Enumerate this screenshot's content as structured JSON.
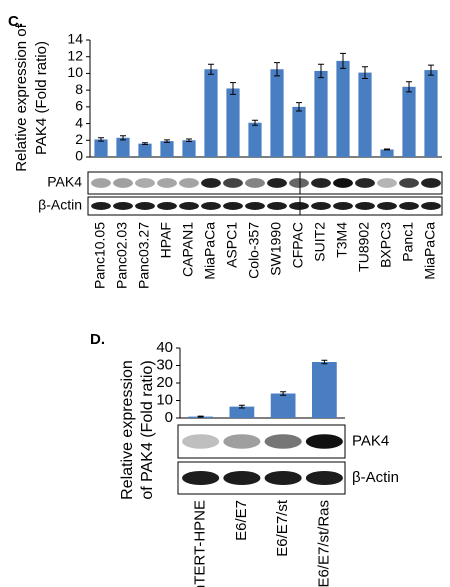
{
  "chart_data": [
    {
      "type": "bar",
      "panel": "C.",
      "ylabel": [
        "Relative expression of",
        "PAK4 (Fold ratio)"
      ],
      "categories": [
        "Panc10.05",
        "Panc02.03",
        "Panc03.27",
        "HPAF",
        "CAPAN1",
        "MiaPaCa",
        "ASPC1",
        "Colo-357",
        "SW1990",
        "CFPAC",
        "SUIT2",
        "T3M4",
        "TU8902",
        "BXPC3",
        "Panc1",
        "MiaPaCa"
      ],
      "values": [
        2.1,
        2.3,
        1.6,
        1.9,
        2.0,
        10.5,
        8.2,
        4.1,
        10.5,
        6.0,
        10.3,
        11.5,
        10.1,
        0.9,
        8.4,
        10.4
      ],
      "errors": [
        0.2,
        0.25,
        0.1,
        0.15,
        0.15,
        0.6,
        0.7,
        0.3,
        0.8,
        0.5,
        0.8,
        0.9,
        0.7,
        0.05,
        0.6,
        0.6
      ],
      "color": "#4a7ec2",
      "ylim": [
        0,
        14
      ],
      "yticks": [
        0,
        2,
        4,
        6,
        8,
        10,
        12,
        14
      ],
      "blot_labels": [
        "PAK4",
        "β-Actin"
      ]
    },
    {
      "type": "bar",
      "panel": "D.",
      "ylabel": [
        "Relative expression",
        "of PAK4 (Fold ratio)"
      ],
      "categories": [
        "hTERT-HPNE",
        "E6/E7",
        "E6/E7/st",
        "E6/E7/st/Ras"
      ],
      "values": [
        0.8,
        6.5,
        14,
        32
      ],
      "errors": [
        0.3,
        0.8,
        1,
        1
      ],
      "color": "#4a7ec2",
      "ylim": [
        0,
        40
      ],
      "yticks": [
        0,
        10,
        20,
        30,
        40
      ],
      "blot_labels": [
        "PAK4",
        "β-Actin"
      ]
    }
  ]
}
